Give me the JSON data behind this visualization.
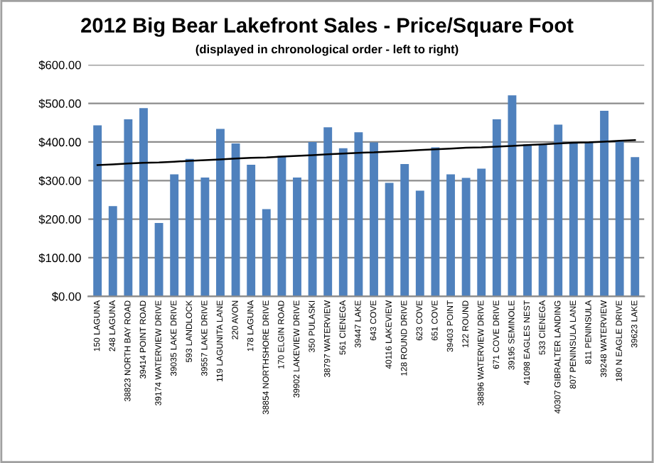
{
  "chart_data": {
    "type": "bar",
    "title": "2012 Big Bear Lakefront Sales - Price/Square Foot",
    "subtitle": "(displayed in chronological order - left to right)",
    "categories": [
      "150 LAGUNA",
      "248 LAGUNA",
      "38823 NORTH BAY ROAD",
      "39414 POINT ROAD",
      "39174 WATERVIEW DRIVE",
      "39035 LAKE DRIVE",
      "593 LANDLOCK",
      "39557 LAKE DRIVE",
      "119 LAGUNITA LANE",
      "220 AVON",
      "178 LAGUNA",
      "38854 NORTHSHORE DRIVE",
      "170 ELGIN ROAD",
      "39902 LAKEVIEW DRIVE",
      "350 PULASKI",
      "38797 WATERVIEW",
      "561 CIENEGA",
      "39447 LAKE",
      "643 COVE",
      "40116 LAKEVIEW",
      "128 ROUND DRIVE",
      "623 COVE",
      "651 COVE",
      "39403 POINT",
      "122 ROUND",
      "38896 WATERVIEW DRIVE",
      "671 COVE DRIVE",
      "39195 SEMINOLE",
      "41098 EAGLES NEST",
      "533 CIENEGA",
      "40307 GIBRALTER LANDING",
      "807 PENINSULA LANE",
      "811 PENINSULA",
      "39248 WATERVIEW",
      "180 N EAGLE DRIVE",
      "39623 LAKE"
    ],
    "series": [
      {
        "color": "#4f81bd",
        "values": [
          443,
          234,
          459,
          488,
          190,
          316,
          356,
          308,
          434,
          396,
          341,
          226,
          364,
          308,
          400,
          438,
          384,
          425,
          399,
          294,
          343,
          274,
          386,
          316,
          307,
          331,
          459,
          521,
          394,
          394,
          445,
          398,
          398,
          481,
          403,
          361
        ]
      },
      {
        "type": "line",
        "color": "#000000",
        "values": [
          340,
          342,
          344,
          346,
          347,
          349,
          351,
          353,
          355,
          357,
          359,
          360,
          362,
          364,
          366,
          368,
          370,
          372,
          373,
          375,
          377,
          379,
          381,
          383,
          385,
          386,
          388,
          390,
          392,
          394,
          396,
          398,
          399,
          401,
          403,
          405
        ]
      }
    ],
    "ylim": [
      0,
      600
    ],
    "yticks": [
      {
        "value": 0,
        "label": "$0.00"
      },
      {
        "value": 100,
        "label": "$100.00"
      },
      {
        "value": 200,
        "label": "$200.00"
      },
      {
        "value": 300,
        "label": "$300.00"
      },
      {
        "value": 400,
        "label": "$400.00"
      },
      {
        "value": 500,
        "label": "$500.00"
      },
      {
        "value": 600,
        "label": "$600.00"
      }
    ],
    "grid": "y",
    "legend": false
  }
}
